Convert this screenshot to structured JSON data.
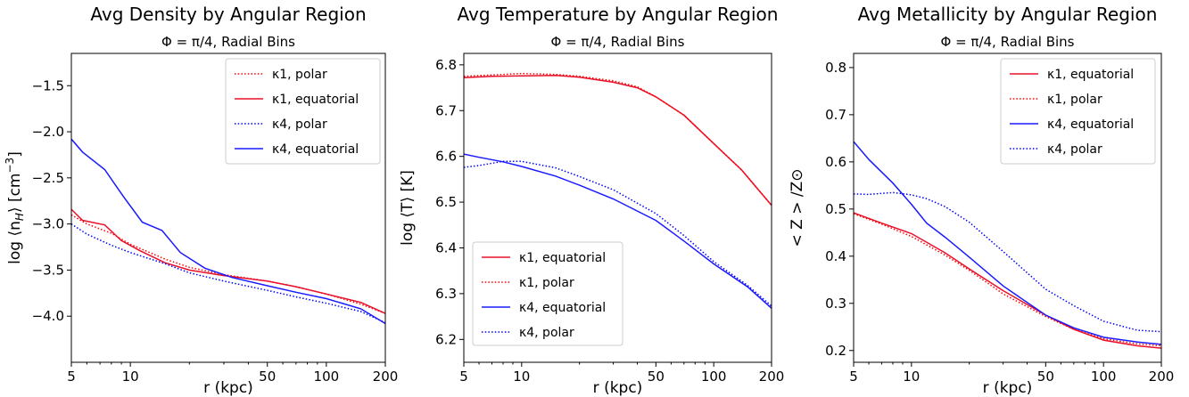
{
  "chart_data": [
    {
      "type": "line",
      "title": "Avg Density by Angular Region",
      "subtitle": "Φ = π/4, Radial Bins",
      "xlabel": "r (kpc)",
      "ylabel": "log ⟨n_H⟩ [cm⁻³]",
      "ylabel_parts": {
        "pre": "log ⟨n",
        "sub": "H",
        "mid": "⟩ [cm",
        "sup": "−3",
        "post": "]"
      },
      "xscale": "log",
      "xlim": [
        5,
        200
      ],
      "ylim": [
        -4.5,
        -1.15
      ],
      "xticks": [
        5,
        10,
        50,
        100,
        200
      ],
      "xtick_labels": [
        "5",
        "10",
        "50",
        "100",
        "200"
      ],
      "yticks": [
        -4.0,
        -3.5,
        -3.0,
        -2.5,
        -2.0,
        -1.5
      ],
      "ytick_labels": [
        "−4.0",
        "−3.5",
        "−3.0",
        "−2.5",
        "−2.0",
        "−1.5"
      ],
      "grid": false,
      "legend_position": "top-right",
      "series": [
        {
          "name": "κ1, polar",
          "color": "#ff0000",
          "style": "dotted",
          "x": [
            5,
            6,
            8,
            10,
            15,
            20,
            30,
            50,
            70,
            100,
            150,
            200
          ],
          "y": [
            -2.9,
            -3.0,
            -3.1,
            -3.22,
            -3.38,
            -3.47,
            -3.55,
            -3.62,
            -3.68,
            -3.76,
            -3.87,
            -3.97
          ]
        },
        {
          "name": "κ1, equatorial",
          "color": "#e8102a",
          "style": "solid",
          "x": [
            5,
            5.7,
            7.4,
            9,
            11.2,
            15,
            20,
            30,
            50,
            70,
            100,
            150,
            200
          ],
          "y": [
            -2.84,
            -2.96,
            -3.01,
            -3.18,
            -3.29,
            -3.42,
            -3.5,
            -3.56,
            -3.62,
            -3.68,
            -3.76,
            -3.85,
            -3.97
          ]
        },
        {
          "name": "κ4, polar",
          "color": "#0000ff",
          "style": "dotted",
          "x": [
            5,
            6,
            8,
            10,
            15,
            20,
            30,
            50,
            70,
            100,
            150,
            200
          ],
          "y": [
            -3.0,
            -3.11,
            -3.23,
            -3.31,
            -3.43,
            -3.53,
            -3.62,
            -3.72,
            -3.79,
            -3.86,
            -3.95,
            -4.07
          ]
        },
        {
          "name": "κ4, equatorial",
          "color": "#1a1aff",
          "style": "solid",
          "x": [
            5,
            5.7,
            7.4,
            9.2,
            11.5,
            14.5,
            18,
            24,
            33,
            50,
            70,
            100,
            150,
            200
          ],
          "y": [
            -2.08,
            -2.22,
            -2.41,
            -2.7,
            -2.98,
            -3.07,
            -3.31,
            -3.48,
            -3.58,
            -3.67,
            -3.74,
            -3.81,
            -3.92,
            -4.08
          ]
        }
      ]
    },
    {
      "type": "line",
      "title": "Avg Temperature by Angular Region",
      "subtitle": "Φ = π/4, Radial Bins",
      "xlabel": "r (kpc)",
      "ylabel": "log ⟨T⟩ [K]",
      "xscale": "log",
      "xlim": [
        5,
        200
      ],
      "ylim": [
        6.15,
        6.825
      ],
      "xticks": [
        5,
        10,
        50,
        100,
        200
      ],
      "xtick_labels": [
        "5",
        "10",
        "50",
        "100",
        "200"
      ],
      "yticks": [
        6.2,
        6.3,
        6.4,
        6.5,
        6.6,
        6.7,
        6.8
      ],
      "ytick_labels": [
        "6.2",
        "6.3",
        "6.4",
        "6.5",
        "6.6",
        "6.7",
        "6.8"
      ],
      "grid": false,
      "legend_position": "bottom-left",
      "series": [
        {
          "name": "κ1, equatorial",
          "color": "#e8102a",
          "style": "solid",
          "x": [
            5,
            7,
            10,
            15,
            20,
            30,
            40,
            50,
            70,
            100,
            140,
            200
          ],
          "y": [
            6.772,
            6.775,
            6.776,
            6.777,
            6.773,
            6.762,
            6.75,
            6.73,
            6.69,
            6.628,
            6.57,
            6.493
          ]
        },
        {
          "name": "κ1, polar",
          "color": "#ff0000",
          "style": "dotted",
          "x": [
            5,
            7,
            10,
            15,
            20,
            30,
            40,
            50,
            70,
            100,
            140,
            200
          ],
          "y": [
            6.775,
            6.778,
            6.781,
            6.779,
            6.775,
            6.765,
            6.752,
            6.73,
            6.69,
            6.628,
            6.57,
            6.493
          ]
        },
        {
          "name": "κ4, equatorial",
          "color": "#1a1aff",
          "style": "solid",
          "x": [
            5,
            6,
            8,
            10,
            15,
            20,
            30,
            50,
            70,
            100,
            150,
            200
          ],
          "y": [
            6.605,
            6.598,
            6.588,
            6.578,
            6.557,
            6.537,
            6.507,
            6.46,
            6.415,
            6.365,
            6.315,
            6.268
          ]
        },
        {
          "name": "κ4, polar",
          "color": "#0000ff",
          "style": "dotted",
          "x": [
            5,
            6,
            8,
            10,
            15,
            20,
            30,
            50,
            70,
            100,
            150,
            200
          ],
          "y": [
            6.576,
            6.58,
            6.589,
            6.589,
            6.575,
            6.556,
            6.527,
            6.475,
            6.427,
            6.37,
            6.318,
            6.273
          ]
        }
      ]
    },
    {
      "type": "line",
      "title": "Avg Metallicity by Angular Region",
      "subtitle": "Φ = π/4, Radial Bins",
      "xlabel": "r (kpc)",
      "ylabel": "< Z > /Z⊙",
      "xscale": "log",
      "xlim": [
        5,
        200
      ],
      "ylim": [
        0.175,
        0.83
      ],
      "xticks": [
        5,
        10,
        50,
        100,
        200
      ],
      "xtick_labels": [
        "5",
        "10",
        "50",
        "100",
        "200"
      ],
      "yticks": [
        0.2,
        0.3,
        0.4,
        0.5,
        0.6,
        0.7,
        0.8
      ],
      "ytick_labels": [
        "0.2",
        "0.3",
        "0.4",
        "0.5",
        "0.6",
        "0.7",
        "0.8"
      ],
      "grid": false,
      "legend_position": "top-right",
      "series": [
        {
          "name": "κ1, equatorial",
          "color": "#e8102a",
          "style": "solid",
          "x": [
            5,
            7,
            10,
            15,
            20,
            30,
            50,
            70,
            100,
            150,
            200
          ],
          "y": [
            0.492,
            0.47,
            0.448,
            0.407,
            0.373,
            0.327,
            0.275,
            0.245,
            0.222,
            0.21,
            0.205
          ]
        },
        {
          "name": "κ1, polar",
          "color": "#ff0000",
          "style": "dotted",
          "x": [
            5,
            7,
            10,
            15,
            20,
            30,
            50,
            70,
            100,
            150,
            200
          ],
          "y": [
            0.49,
            0.468,
            0.442,
            0.402,
            0.37,
            0.32,
            0.272,
            0.245,
            0.225,
            0.214,
            0.21
          ]
        },
        {
          "name": "κ4, equatorial",
          "color": "#1a1aff",
          "style": "solid",
          "x": [
            5,
            6,
            8,
            10,
            12,
            15,
            20,
            30,
            50,
            70,
            100,
            150,
            200
          ],
          "y": [
            0.643,
            0.605,
            0.555,
            0.51,
            0.47,
            0.44,
            0.398,
            0.337,
            0.275,
            0.248,
            0.228,
            0.218,
            0.213
          ]
        },
        {
          "name": "κ4, polar",
          "color": "#0000ff",
          "style": "dotted",
          "x": [
            5,
            6,
            8,
            10,
            12,
            15,
            20,
            30,
            50,
            70,
            100,
            150,
            200
          ],
          "y": [
            0.532,
            0.531,
            0.535,
            0.53,
            0.522,
            0.505,
            0.472,
            0.41,
            0.33,
            0.295,
            0.262,
            0.243,
            0.24
          ]
        }
      ]
    }
  ]
}
